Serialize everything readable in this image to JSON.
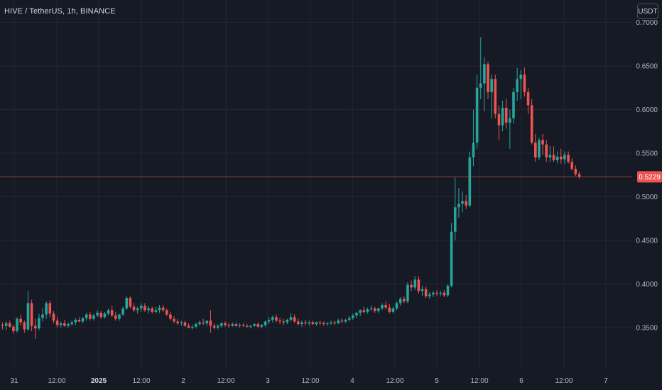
{
  "header": {
    "symbol_title": "HIVE / TetherUS, 1h, BINANCE",
    "currency_button": "USDT"
  },
  "colors": {
    "background": "#161a25",
    "grid": "#232734",
    "up": "#26a69a",
    "down": "#ef5350",
    "axis_text": "#b2b5be",
    "last_price_line": "#ef5350"
  },
  "chart_data": {
    "type": "candlestick",
    "symbol": "HIVE / TetherUS",
    "interval": "1h",
    "exchange": "BINANCE",
    "y_axis": {
      "ticks": [
        "0.7000",
        "0.6500",
        "0.6000",
        "0.5500",
        "0.5000",
        "0.4500",
        "0.4000",
        "0.3500"
      ],
      "range": [
        0.3,
        0.7
      ]
    },
    "x_axis": {
      "ticks": [
        {
          "label": "31",
          "bold": false
        },
        {
          "label": "12:00",
          "bold": false
        },
        {
          "label": "2025",
          "bold": true
        },
        {
          "label": "12:00",
          "bold": false
        },
        {
          "label": "2",
          "bold": false
        },
        {
          "label": "12:00",
          "bold": false
        },
        {
          "label": "3",
          "bold": false
        },
        {
          "label": "12:00",
          "bold": false
        },
        {
          "label": "4",
          "bold": false
        },
        {
          "label": "12:00",
          "bold": false
        },
        {
          "label": "5",
          "bold": false
        },
        {
          "label": "12:00",
          "bold": false
        },
        {
          "label": "6",
          "bold": false
        },
        {
          "label": "12:00",
          "bold": false
        },
        {
          "label": "7",
          "bold": false
        }
      ]
    },
    "last_price": "0.5229",
    "last_price_value": 0.5229,
    "grid": true,
    "candles": [
      [
        0.353,
        0.356,
        0.348,
        0.352
      ],
      [
        0.352,
        0.357,
        0.347,
        0.355
      ],
      [
        0.355,
        0.358,
        0.35,
        0.351
      ],
      [
        0.351,
        0.353,
        0.343,
        0.346
      ],
      [
        0.346,
        0.362,
        0.344,
        0.36
      ],
      [
        0.36,
        0.365,
        0.352,
        0.356
      ],
      [
        0.356,
        0.358,
        0.344,
        0.348
      ],
      [
        0.348,
        0.392,
        0.346,
        0.378
      ],
      [
        0.378,
        0.382,
        0.346,
        0.352
      ],
      [
        0.352,
        0.36,
        0.337,
        0.349
      ],
      [
        0.349,
        0.366,
        0.347,
        0.361
      ],
      [
        0.361,
        0.372,
        0.357,
        0.365
      ],
      [
        0.365,
        0.38,
        0.36,
        0.378
      ],
      [
        0.378,
        0.381,
        0.362,
        0.366
      ],
      [
        0.366,
        0.369,
        0.355,
        0.358
      ],
      [
        0.358,
        0.362,
        0.35,
        0.353
      ],
      [
        0.353,
        0.357,
        0.35,
        0.355
      ],
      [
        0.355,
        0.359,
        0.351,
        0.352
      ],
      [
        0.352,
        0.356,
        0.35,
        0.354
      ],
      [
        0.354,
        0.358,
        0.352,
        0.356
      ],
      [
        0.356,
        0.361,
        0.353,
        0.359
      ],
      [
        0.359,
        0.362,
        0.356,
        0.357
      ],
      [
        0.357,
        0.362,
        0.355,
        0.361
      ],
      [
        0.361,
        0.367,
        0.358,
        0.365
      ],
      [
        0.365,
        0.368,
        0.358,
        0.36
      ],
      [
        0.36,
        0.366,
        0.358,
        0.364
      ],
      [
        0.364,
        0.37,
        0.362,
        0.367
      ],
      [
        0.367,
        0.369,
        0.36,
        0.362
      ],
      [
        0.362,
        0.368,
        0.36,
        0.366
      ],
      [
        0.366,
        0.372,
        0.364,
        0.37
      ],
      [
        0.37,
        0.375,
        0.362,
        0.364
      ],
      [
        0.364,
        0.368,
        0.358,
        0.36
      ],
      [
        0.36,
        0.366,
        0.358,
        0.365
      ],
      [
        0.365,
        0.374,
        0.363,
        0.372
      ],
      [
        0.372,
        0.386,
        0.37,
        0.384
      ],
      [
        0.384,
        0.386,
        0.372,
        0.374
      ],
      [
        0.374,
        0.378,
        0.368,
        0.37
      ],
      [
        0.37,
        0.374,
        0.366,
        0.372
      ],
      [
        0.372,
        0.378,
        0.368,
        0.375
      ],
      [
        0.375,
        0.378,
        0.368,
        0.37
      ],
      [
        0.37,
        0.375,
        0.366,
        0.372
      ],
      [
        0.372,
        0.374,
        0.366,
        0.368
      ],
      [
        0.368,
        0.374,
        0.366,
        0.37
      ],
      [
        0.37,
        0.376,
        0.367,
        0.373
      ],
      [
        0.373,
        0.376,
        0.368,
        0.37
      ],
      [
        0.37,
        0.372,
        0.363,
        0.365
      ],
      [
        0.365,
        0.368,
        0.358,
        0.36
      ],
      [
        0.36,
        0.363,
        0.355,
        0.357
      ],
      [
        0.357,
        0.36,
        0.353,
        0.355
      ],
      [
        0.355,
        0.358,
        0.352,
        0.356
      ],
      [
        0.356,
        0.358,
        0.351,
        0.352
      ],
      [
        0.352,
        0.355,
        0.349,
        0.35
      ],
      [
        0.35,
        0.353,
        0.348,
        0.351
      ],
      [
        0.351,
        0.356,
        0.349,
        0.354
      ],
      [
        0.354,
        0.358,
        0.352,
        0.356
      ],
      [
        0.356,
        0.36,
        0.353,
        0.355
      ],
      [
        0.355,
        0.358,
        0.352,
        0.358
      ],
      [
        0.358,
        0.37,
        0.344,
        0.352
      ],
      [
        0.352,
        0.355,
        0.348,
        0.35
      ],
      [
        0.35,
        0.354,
        0.348,
        0.352
      ],
      [
        0.352,
        0.356,
        0.35,
        0.355
      ],
      [
        0.355,
        0.357,
        0.351,
        0.353
      ],
      [
        0.353,
        0.355,
        0.35,
        0.352
      ],
      [
        0.352,
        0.356,
        0.351,
        0.354
      ],
      [
        0.354,
        0.356,
        0.351,
        0.352
      ],
      [
        0.352,
        0.355,
        0.35,
        0.353
      ],
      [
        0.353,
        0.355,
        0.351,
        0.352
      ],
      [
        0.352,
        0.354,
        0.35,
        0.351
      ],
      [
        0.351,
        0.353,
        0.349,
        0.352
      ],
      [
        0.352,
        0.355,
        0.351,
        0.354
      ],
      [
        0.354,
        0.356,
        0.35,
        0.351
      ],
      [
        0.351,
        0.354,
        0.349,
        0.353
      ],
      [
        0.353,
        0.358,
        0.351,
        0.357
      ],
      [
        0.357,
        0.362,
        0.354,
        0.359
      ],
      [
        0.359,
        0.364,
        0.356,
        0.362
      ],
      [
        0.362,
        0.365,
        0.356,
        0.358
      ],
      [
        0.358,
        0.361,
        0.354,
        0.357
      ],
      [
        0.357,
        0.36,
        0.353,
        0.356
      ],
      [
        0.356,
        0.36,
        0.354,
        0.359
      ],
      [
        0.359,
        0.366,
        0.357,
        0.362
      ],
      [
        0.362,
        0.365,
        0.355,
        0.357
      ],
      [
        0.357,
        0.36,
        0.352,
        0.354
      ],
      [
        0.354,
        0.358,
        0.351,
        0.356
      ],
      [
        0.356,
        0.359,
        0.353,
        0.355
      ],
      [
        0.355,
        0.358,
        0.352,
        0.356
      ],
      [
        0.356,
        0.358,
        0.353,
        0.354
      ],
      [
        0.354,
        0.357,
        0.352,
        0.356
      ],
      [
        0.356,
        0.358,
        0.353,
        0.355
      ],
      [
        0.355,
        0.357,
        0.352,
        0.354
      ],
      [
        0.354,
        0.356,
        0.352,
        0.355
      ],
      [
        0.355,
        0.358,
        0.353,
        0.356
      ],
      [
        0.356,
        0.358,
        0.353,
        0.355
      ],
      [
        0.355,
        0.36,
        0.354,
        0.358
      ],
      [
        0.358,
        0.361,
        0.355,
        0.357
      ],
      [
        0.357,
        0.36,
        0.355,
        0.359
      ],
      [
        0.359,
        0.363,
        0.357,
        0.361
      ],
      [
        0.361,
        0.366,
        0.359,
        0.364
      ],
      [
        0.364,
        0.368,
        0.361,
        0.367
      ],
      [
        0.367,
        0.371,
        0.363,
        0.37
      ],
      [
        0.37,
        0.374,
        0.366,
        0.368
      ],
      [
        0.368,
        0.373,
        0.366,
        0.371
      ],
      [
        0.371,
        0.376,
        0.369,
        0.372
      ],
      [
        0.372,
        0.374,
        0.367,
        0.369
      ],
      [
        0.369,
        0.373,
        0.367,
        0.372
      ],
      [
        0.372,
        0.378,
        0.37,
        0.376
      ],
      [
        0.376,
        0.38,
        0.371,
        0.373
      ],
      [
        0.373,
        0.377,
        0.366,
        0.368
      ],
      [
        0.368,
        0.374,
        0.366,
        0.372
      ],
      [
        0.372,
        0.38,
        0.37,
        0.378
      ],
      [
        0.378,
        0.385,
        0.375,
        0.383
      ],
      [
        0.383,
        0.386,
        0.378,
        0.38
      ],
      [
        0.38,
        0.402,
        0.378,
        0.399
      ],
      [
        0.399,
        0.404,
        0.392,
        0.396
      ],
      [
        0.396,
        0.409,
        0.393,
        0.405
      ],
      [
        0.405,
        0.409,
        0.389,
        0.392
      ],
      [
        0.392,
        0.398,
        0.386,
        0.394
      ],
      [
        0.394,
        0.397,
        0.384,
        0.386
      ],
      [
        0.386,
        0.391,
        0.383,
        0.388
      ],
      [
        0.388,
        0.392,
        0.385,
        0.39
      ],
      [
        0.39,
        0.393,
        0.386,
        0.389
      ],
      [
        0.389,
        0.392,
        0.386,
        0.39
      ],
      [
        0.39,
        0.393,
        0.385,
        0.387
      ],
      [
        0.387,
        0.4,
        0.385,
        0.398
      ],
      [
        0.398,
        0.47,
        0.396,
        0.46
      ],
      [
        0.46,
        0.522,
        0.45,
        0.488
      ],
      [
        0.488,
        0.51,
        0.476,
        0.492
      ],
      [
        0.492,
        0.506,
        0.482,
        0.495
      ],
      [
        0.495,
        0.502,
        0.486,
        0.49
      ],
      [
        0.49,
        0.552,
        0.488,
        0.545
      ],
      [
        0.545,
        0.6,
        0.535,
        0.562
      ],
      [
        0.562,
        0.64,
        0.555,
        0.625
      ],
      [
        0.625,
        0.683,
        0.612,
        0.63
      ],
      [
        0.63,
        0.66,
        0.598,
        0.652
      ],
      [
        0.652,
        0.655,
        0.612,
        0.62
      ],
      [
        0.62,
        0.64,
        0.59,
        0.635
      ],
      [
        0.635,
        0.64,
        0.59,
        0.595
      ],
      [
        0.595,
        0.605,
        0.565,
        0.582
      ],
      [
        0.582,
        0.61,
        0.575,
        0.602
      ],
      [
        0.602,
        0.612,
        0.578,
        0.585
      ],
      [
        0.585,
        0.6,
        0.555,
        0.59
      ],
      [
        0.59,
        0.625,
        0.584,
        0.62
      ],
      [
        0.62,
        0.648,
        0.61,
        0.635
      ],
      [
        0.635,
        0.645,
        0.612,
        0.64
      ],
      [
        0.64,
        0.648,
        0.615,
        0.62
      ],
      [
        0.62,
        0.625,
        0.595,
        0.605
      ],
      [
        0.605,
        0.612,
        0.56,
        0.562
      ],
      [
        0.562,
        0.572,
        0.54,
        0.545
      ],
      [
        0.545,
        0.568,
        0.542,
        0.565
      ],
      [
        0.565,
        0.572,
        0.548,
        0.56
      ],
      [
        0.56,
        0.565,
        0.54,
        0.545
      ],
      [
        0.545,
        0.558,
        0.54,
        0.548
      ],
      [
        0.548,
        0.558,
        0.54,
        0.542
      ],
      [
        0.542,
        0.552,
        0.538,
        0.546
      ],
      [
        0.546,
        0.555,
        0.538,
        0.543
      ],
      [
        0.543,
        0.552,
        0.538,
        0.548
      ],
      [
        0.548,
        0.552,
        0.538,
        0.54
      ],
      [
        0.54,
        0.544,
        0.53,
        0.532
      ],
      [
        0.532,
        0.536,
        0.524,
        0.526
      ],
      [
        0.526,
        0.529,
        0.521,
        0.523
      ]
    ]
  }
}
